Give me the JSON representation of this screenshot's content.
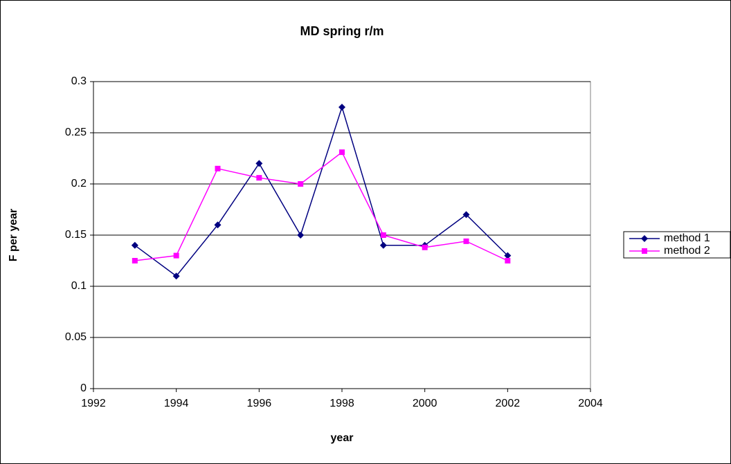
{
  "chart_data": {
    "type": "line",
    "title": "MD spring r/m",
    "xlabel": "year",
    "ylabel": "F per year",
    "x": [
      1993,
      1994,
      1995,
      1996,
      1997,
      1998,
      1999,
      2000,
      2001,
      2002
    ],
    "series": [
      {
        "name": "method 1",
        "color": "#000080",
        "marker": "diamond",
        "values": [
          0.14,
          0.11,
          0.16,
          0.22,
          0.15,
          0.275,
          0.14,
          0.14,
          0.17,
          0.13
        ]
      },
      {
        "name": "method 2",
        "color": "#ff00ff",
        "marker": "square",
        "values": [
          0.125,
          0.13,
          0.215,
          0.206,
          0.2,
          0.231,
          0.15,
          0.138,
          0.144,
          0.125
        ]
      }
    ],
    "xlim": [
      1992,
      2004
    ],
    "xticks": [
      1992,
      1994,
      1996,
      1998,
      2000,
      2002,
      2004
    ],
    "ylim": [
      0,
      0.3
    ],
    "yticks": [
      0,
      0.05,
      0.1,
      0.15,
      0.2,
      0.25,
      0.3
    ],
    "grid": true,
    "legend": "right"
  }
}
